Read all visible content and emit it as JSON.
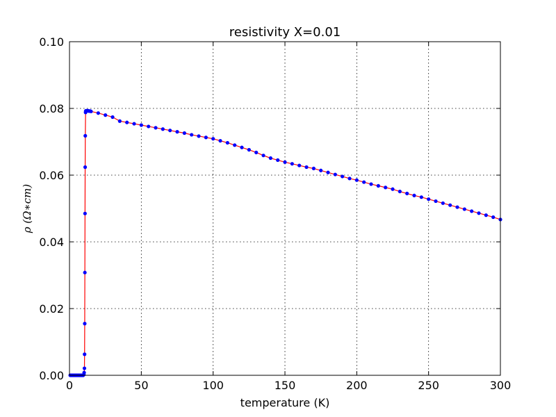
{
  "chart_data": {
    "type": "line",
    "title": "resistivity X=0.01",
    "xlabel": "temperature (K)",
    "ylabel": "ρ (Ω∗cm)",
    "xlim": [
      0,
      300
    ],
    "ylim": [
      0,
      0.1
    ],
    "xticks": [
      0,
      50,
      100,
      150,
      200,
      250,
      300
    ],
    "yticks": [
      0,
      0.02,
      0.04,
      0.06,
      0.08,
      0.1
    ],
    "xtick_labels": [
      "0",
      "50",
      "100",
      "150",
      "200",
      "250",
      "300"
    ],
    "ytick_labels": [
      "0.00",
      "0.02",
      "0.04",
      "0.06",
      "0.08",
      "0.10"
    ],
    "grid": true,
    "colors": {
      "line": "#ff0000",
      "markers": "#0000ff",
      "grid": "#000000"
    },
    "series": [
      {
        "x": [
          0.5,
          1.0,
          1.5,
          2.0,
          2.5,
          3.0,
          3.5,
          4.0,
          4.5,
          5.0,
          5.5,
          6.0,
          6.5,
          7.0,
          7.5,
          8.0,
          8.5,
          9.0,
          9.5,
          10.0,
          10.2,
          10.4,
          10.5,
          10.6,
          10.7,
          10.8,
          10.9,
          11.0,
          11.2,
          11.3,
          11.5,
          12.0,
          12.5,
          13.0,
          13.5,
          14.0,
          14.5,
          15.0,
          20,
          25,
          30,
          35,
          40,
          45,
          50,
          55,
          60,
          65,
          70,
          75,
          80,
          85,
          90,
          95,
          100,
          105,
          110,
          115,
          120,
          125,
          130,
          135,
          140,
          145,
          150,
          155,
          160,
          165,
          170,
          175,
          180,
          185,
          190,
          195,
          200,
          205,
          210,
          215,
          220,
          225,
          230,
          235,
          240,
          245,
          250,
          255,
          260,
          265,
          270,
          275,
          280,
          285,
          290,
          295,
          300
        ],
        "y": [
          0.0,
          0.0,
          0.0,
          0.0,
          0.0,
          0.0,
          0.0,
          0.0,
          0.0,
          0.0,
          0.0,
          0.0,
          0.0,
          0.0,
          0.0,
          0.0,
          0.0,
          0.0,
          0.0,
          0.0002,
          0.0008,
          0.0021,
          0.0063,
          0.0155,
          0.0308,
          0.0485,
          0.0624,
          0.0718,
          0.0788,
          0.0792,
          0.0793,
          0.0793,
          0.0793,
          0.0793,
          0.0792,
          0.0792,
          0.0792,
          0.0791,
          0.0786,
          0.078,
          0.0774,
          0.0762,
          0.0758,
          0.0754,
          0.075,
          0.0746,
          0.0742,
          0.0738,
          0.0734,
          0.073,
          0.0726,
          0.0721,
          0.0717,
          0.0713,
          0.0709,
          0.0703,
          0.0697,
          0.069,
          0.0683,
          0.0676,
          0.0668,
          0.0659,
          0.0651,
          0.0645,
          0.0639,
          0.0634,
          0.0629,
          0.0624,
          0.062,
          0.0614,
          0.0608,
          0.0602,
          0.0596,
          0.059,
          0.0585,
          0.0579,
          0.0573,
          0.0568,
          0.0563,
          0.0558,
          0.0551,
          0.0545,
          0.0539,
          0.0534,
          0.0528,
          0.0522,
          0.0516,
          0.051,
          0.0504,
          0.0498,
          0.0492,
          0.0486,
          0.048,
          0.0474,
          0.0467
        ]
      }
    ]
  }
}
